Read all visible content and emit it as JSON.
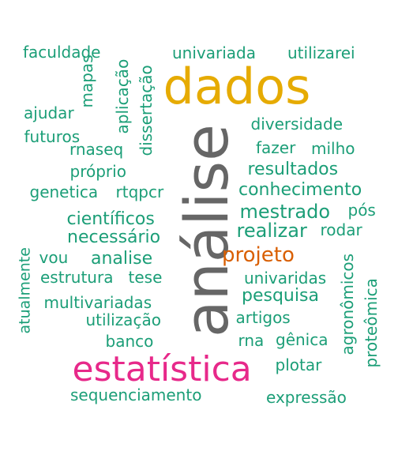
{
  "colors": {
    "teal": "#1B9E77",
    "gold": "#E6AB02",
    "gray": "#666666",
    "magenta": "#E7298A",
    "orange": "#D95F02"
  },
  "words": [
    {
      "text": "análise",
      "color": "#666666"
    },
    {
      "text": "dados",
      "color": "#E6AB02"
    },
    {
      "text": "estatística",
      "color": "#E7298A"
    },
    {
      "text": "projeto",
      "color": "#D95F02"
    },
    {
      "text": "faculdade",
      "color": "#1B9E77"
    },
    {
      "text": "univariada",
      "color": "#1B9E77"
    },
    {
      "text": "utilizarei",
      "color": "#1B9E77"
    },
    {
      "text": "mapas",
      "color": "#1B9E77"
    },
    {
      "text": "aplicação",
      "color": "#1B9E77"
    },
    {
      "text": "dissertação",
      "color": "#1B9E77"
    },
    {
      "text": "ajudar",
      "color": "#1B9E77"
    },
    {
      "text": "futuros",
      "color": "#1B9E77"
    },
    {
      "text": "rnaseq",
      "color": "#1B9E77"
    },
    {
      "text": "próprio",
      "color": "#1B9E77"
    },
    {
      "text": "genetica",
      "color": "#1B9E77"
    },
    {
      "text": "rtqpcr",
      "color": "#1B9E77"
    },
    {
      "text": "diversidade",
      "color": "#1B9E77"
    },
    {
      "text": "fazer",
      "color": "#1B9E77"
    },
    {
      "text": "milho",
      "color": "#1B9E77"
    },
    {
      "text": "resultados",
      "color": "#1B9E77"
    },
    {
      "text": "conhecimento",
      "color": "#1B9E77"
    },
    {
      "text": "mestrado",
      "color": "#1B9E77"
    },
    {
      "text": "pós",
      "color": "#1B9E77"
    },
    {
      "text": "científicos",
      "color": "#1B9E77"
    },
    {
      "text": "realizar",
      "color": "#1B9E77"
    },
    {
      "text": "rodar",
      "color": "#1B9E77"
    },
    {
      "text": "necessário",
      "color": "#1B9E77"
    },
    {
      "text": "vou",
      "color": "#1B9E77"
    },
    {
      "text": "analise",
      "color": "#1B9E77"
    },
    {
      "text": "estrutura",
      "color": "#1B9E77"
    },
    {
      "text": "tese",
      "color": "#1B9E77"
    },
    {
      "text": "univaridas",
      "color": "#1B9E77"
    },
    {
      "text": "atualmente",
      "color": "#1B9E77"
    },
    {
      "text": "multivariadas",
      "color": "#1B9E77"
    },
    {
      "text": "pesquisa",
      "color": "#1B9E77"
    },
    {
      "text": "utilização",
      "color": "#1B9E77"
    },
    {
      "text": "artigos",
      "color": "#1B9E77"
    },
    {
      "text": "agronômicos",
      "color": "#1B9E77"
    },
    {
      "text": "proteômica",
      "color": "#1B9E77"
    },
    {
      "text": "banco",
      "color": "#1B9E77"
    },
    {
      "text": "rna",
      "color": "#1B9E77"
    },
    {
      "text": "gênica",
      "color": "#1B9E77"
    },
    {
      "text": "plotar",
      "color": "#1B9E77"
    },
    {
      "text": "sequenciamento",
      "color": "#1B9E77"
    },
    {
      "text": "expressão",
      "color": "#1B9E77"
    }
  ]
}
